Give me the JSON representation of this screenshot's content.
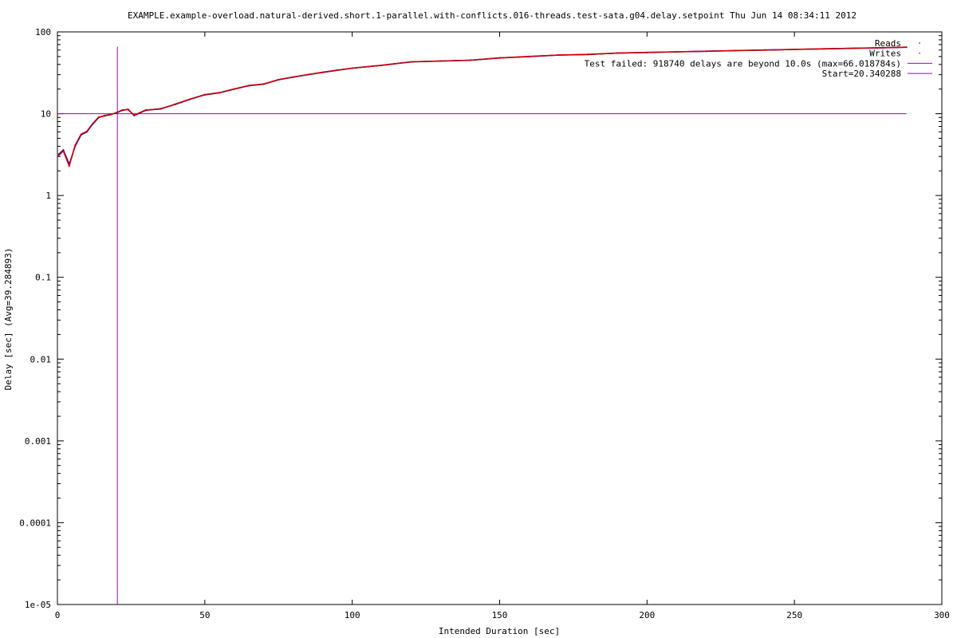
{
  "chart_data": {
    "type": "line",
    "title": "EXAMPLE.example-overload.natural-derived.short.1-parallel.with-conflicts.016-threads.test-sata.g04.delay.setpoint Thu Jun 14 08:34:11 2012",
    "xlabel": "Intended Duration [sec]",
    "ylabel": "Delay [sec]  (Avg=39.284893)",
    "xlim": [
      0,
      300
    ],
    "ylim": [
      1e-05,
      100
    ],
    "yscale": "log",
    "grid": false,
    "legend_position": "top-right",
    "x_ticks": [
      0,
      50,
      100,
      150,
      200,
      250,
      300
    ],
    "x_tick_labels": [
      "0",
      "50",
      "100",
      "150",
      "200",
      "250",
      "300"
    ],
    "y_ticks": [
      1e-05,
      0.0001,
      0.001,
      0.01,
      0.1,
      1,
      10,
      100
    ],
    "y_tick_labels": [
      "1e-05",
      "0.0001",
      "0.001",
      "0.01",
      "0.1",
      "1",
      "10",
      "100"
    ],
    "series": [
      {
        "name": "Reads",
        "color": "#0000cc",
        "style": "dots",
        "x": [
          0.5,
          2,
          4,
          6,
          8,
          10,
          12,
          14,
          16,
          18,
          20,
          22,
          24,
          26,
          30,
          35,
          40,
          45,
          50,
          55,
          60,
          65,
          70,
          75,
          80,
          85,
          90,
          95,
          100,
          110,
          120,
          130,
          140,
          150,
          160,
          170,
          180,
          190,
          200,
          210,
          220,
          230,
          240,
          250,
          260,
          270,
          280,
          288
        ],
        "values": [
          3.2,
          3.6,
          2.4,
          4.0,
          5.5,
          6.0,
          7.5,
          9.0,
          9.5,
          9.8,
          10.2,
          11.0,
          11.3,
          9.5,
          11.0,
          11.5,
          13.0,
          15.0,
          17.0,
          18.0,
          20.0,
          22.0,
          23.0,
          26.0,
          28.0,
          30.0,
          32.0,
          34.0,
          36.0,
          39.0,
          43.0,
          44.0,
          45.0,
          48.0,
          50.0,
          52.0,
          53.0,
          55.0,
          56.0,
          57.0,
          58.0,
          59.0,
          60.0,
          61.0,
          62.0,
          63.0,
          64.0,
          65.0
        ]
      },
      {
        "name": "Writes",
        "color": "#cc0000",
        "style": "dots",
        "x": [
          0.5,
          2,
          4,
          6,
          8,
          10,
          12,
          14,
          16,
          18,
          20,
          22,
          24,
          26,
          30,
          35,
          40,
          45,
          50,
          55,
          60,
          65,
          70,
          75,
          80,
          85,
          90,
          95,
          100,
          110,
          120,
          130,
          140,
          150,
          160,
          170,
          180,
          190,
          200,
          210,
          220,
          230,
          240,
          250,
          260,
          270,
          280,
          288
        ],
        "values": [
          3.1,
          3.5,
          2.3,
          4.1,
          5.6,
          6.1,
          7.6,
          9.1,
          9.4,
          9.7,
          10.3,
          11.1,
          11.2,
          9.6,
          11.1,
          11.4,
          13.1,
          15.1,
          17.1,
          18.1,
          20.1,
          22.1,
          23.1,
          26.1,
          28.1,
          30.1,
          32.1,
          34.1,
          36.1,
          39.1,
          43.1,
          44.1,
          45.1,
          48.1,
          50.1,
          52.1,
          53.1,
          55.1,
          56.1,
          57.1,
          58.1,
          59.1,
          60.1,
          61.1,
          62.1,
          63.1,
          64.1,
          65.0
        ]
      }
    ],
    "reference_lines": [
      {
        "name": "Test failed: 918740 delays are beyond 10.0s (max=66.018784s)",
        "orientation": "horizontal",
        "value": 10,
        "x_range": [
          0,
          288
        ],
        "color": "#9900cc"
      },
      {
        "name": "Start=20.340288",
        "orientation": "vertical",
        "value": 20.340288,
        "y_range": [
          1e-05,
          66.018784
        ],
        "color": "#9900cc"
      }
    ]
  }
}
